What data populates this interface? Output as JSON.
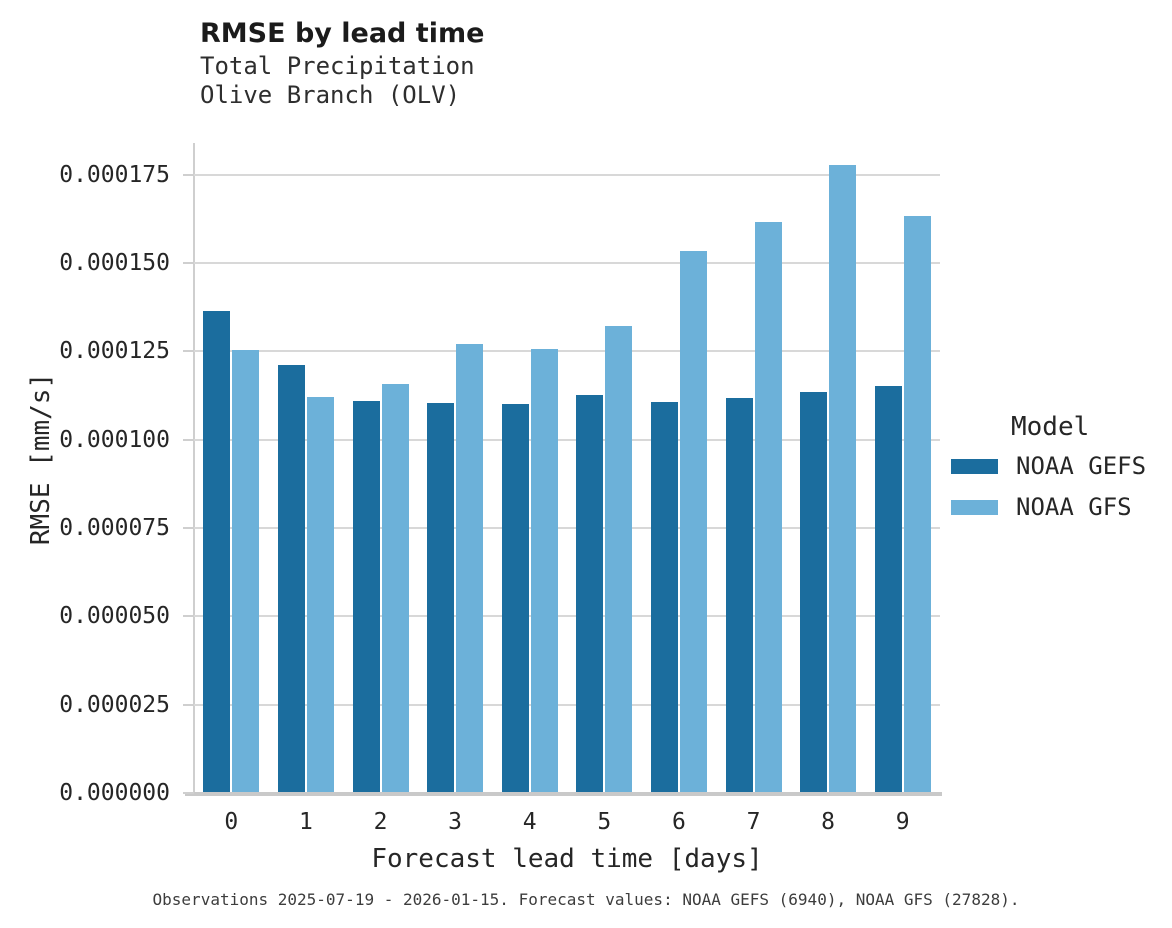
{
  "chart_data": {
    "type": "bar",
    "title": "RMSE by lead time",
    "subtitle_line1": "Total Precipitation",
    "subtitle_line2": "Olive Branch (OLV)",
    "xlabel": "Forecast lead time [days]",
    "ylabel": "RMSE [mm/s]",
    "legend_title": "Model",
    "legend_position": "right",
    "grid": true,
    "categories": [
      "0",
      "1",
      "2",
      "3",
      "4",
      "5",
      "6",
      "7",
      "8",
      "9"
    ],
    "series": [
      {
        "name": "NOAA GEFS",
        "color": "#1b6d9e",
        "values": [
          0.0001365,
          0.0001212,
          0.0001109,
          0.0001105,
          0.0001102,
          0.0001126,
          0.0001106,
          0.0001117,
          0.0001136,
          0.0001152
        ]
      },
      {
        "name": "NOAA GFS",
        "color": "#6cb1d9",
        "values": [
          0.0001255,
          0.000112,
          0.0001157,
          0.000127,
          0.0001258,
          0.0001321,
          0.0001533,
          0.0001616,
          0.0001779,
          0.0001633
        ]
      }
    ],
    "ylim": [
      0,
      0.000184
    ],
    "y_ticks": [
      {
        "value": 0.0,
        "label": "0.000000"
      },
      {
        "value": 2.5e-05,
        "label": "0.000025"
      },
      {
        "value": 5e-05,
        "label": "0.000050"
      },
      {
        "value": 7.5e-05,
        "label": "0.000075"
      },
      {
        "value": 0.0001,
        "label": "0.000100"
      },
      {
        "value": 0.000125,
        "label": "0.000125"
      },
      {
        "value": 0.00015,
        "label": "0.000150"
      },
      {
        "value": 0.000175,
        "label": "0.000175"
      }
    ],
    "caption": "Observations 2025-07-19 - 2026-01-15. Forecast values: NOAA GEFS (6940), NOAA GFS (27828)."
  }
}
